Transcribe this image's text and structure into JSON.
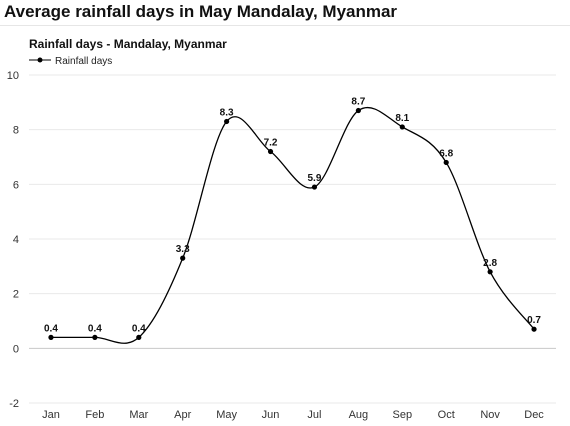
{
  "page": {
    "title": "Average rainfall days in May Mandalay, Myanmar"
  },
  "chart_data": {
    "type": "line",
    "title": "Rainfall days - Mandalay, Myanmar",
    "xlabel": "",
    "ylabel": "",
    "categories": [
      "Jan",
      "Feb",
      "Mar",
      "Apr",
      "May",
      "Jun",
      "Jul",
      "Aug",
      "Sep",
      "Oct",
      "Nov",
      "Dec"
    ],
    "series": [
      {
        "name": "Rainfall days",
        "values": [
          0.4,
          0.4,
          0.4,
          3.3,
          8.3,
          7.2,
          5.9,
          8.7,
          8.1,
          6.8,
          2.8,
          0.7
        ],
        "color": "#000000"
      }
    ],
    "ylim": [
      -2,
      10
    ],
    "yticks": [
      -2,
      0,
      2,
      4,
      6,
      8,
      10
    ],
    "grid": true,
    "legend": "top-left",
    "smooth": true,
    "data_labels": true
  }
}
